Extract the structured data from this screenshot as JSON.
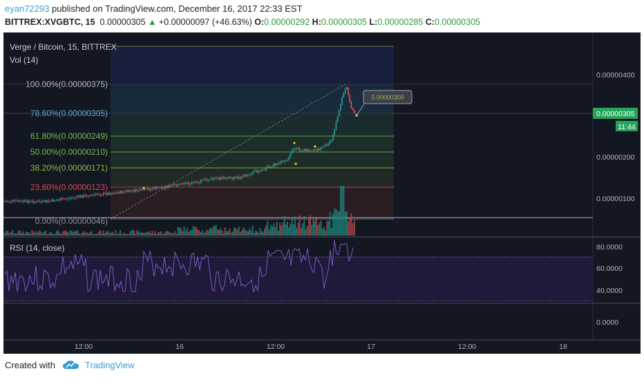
{
  "header": {
    "user": "eyan72293",
    "published": "published on TradingView.com, December 16, 2017 22:33 EST",
    "symbol": "BITTREX:XVGBTC, 15",
    "last": "0.00000305",
    "change_arrow": "▲",
    "change": "+0.00000097 (+46.63%)",
    "o_label": "O:",
    "o_value": "0.00000292",
    "h_label": "H:",
    "h_value": "0.00000305",
    "l_label": "L:",
    "l_value": "0.00000285",
    "c_label": "C:",
    "c_value": "0.00000305"
  },
  "chart": {
    "legend_main": "Verge / Bitcoin, 15, BITTREX",
    "legend_vol": "Vol (14)",
    "legend_rsi": "RSI (14, close)",
    "price_axis": [
      "0.00000400",
      "0.00000200",
      "0.00000100"
    ],
    "price_tag": "0.00000305",
    "time_tag": "11:44",
    "rsi_axis": [
      "80.0000",
      "60.0000",
      "40.0000"
    ],
    "third_axis": [
      "0.0000"
    ],
    "time_axis": [
      "12:00",
      "16",
      "12:00",
      "17",
      "12:00",
      "18"
    ],
    "callout": "0.00000300",
    "fib_levels": [
      {
        "label": "100.00%(0.00000375)",
        "color": "#b2b5be"
      },
      {
        "label": "78.60%(0.00000305)",
        "color": "#5fa8d3"
      },
      {
        "label": "61.80%(0.00000249)",
        "color": "#6cc04a"
      },
      {
        "label": "50.00%(0.00000210)",
        "color": "#6cc04a"
      },
      {
        "label": "38.20%(0.00000171)",
        "color": "#8bbf3a"
      },
      {
        "label": "23.60%(0.00000123)",
        "color": "#e0454a"
      },
      {
        "label": "0.00%(0.00000046)",
        "color": "#8b8f99"
      }
    ],
    "colors": {
      "background": "#131722",
      "up": "#26a69a",
      "down": "#ef5350",
      "rsi": "#7e57c2",
      "tag": "#26a65b"
    }
  },
  "footer": {
    "created": "Created with",
    "brand": "TradingView"
  }
}
